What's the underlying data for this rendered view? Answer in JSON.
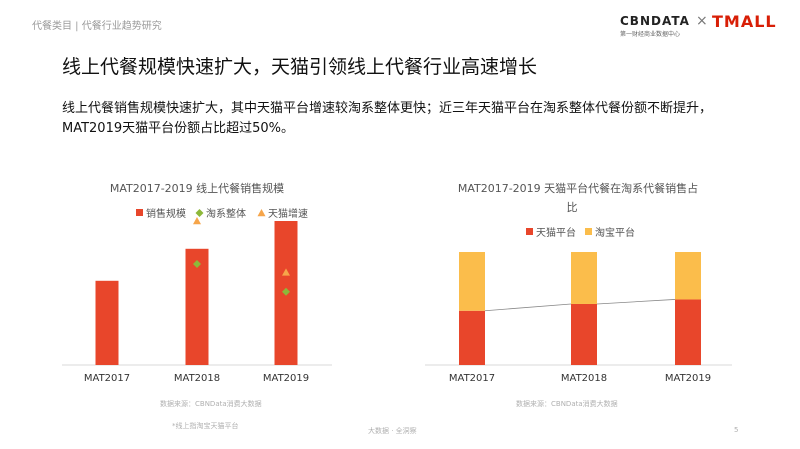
{
  "header": {
    "breadcrumb": "代餐类目 | 代餐行业趋势研究",
    "logo_cbn": "CBNDATA",
    "logo_cbn_sub": "第一财经商业数据中心",
    "logo_x": "×",
    "logo_tmall": "TMALL"
  },
  "page_title": "线上代餐规模快速扩大，天猫引领线上代餐行业高速增长",
  "description": "线上代餐销售规模快速扩大，其中天猫平台增速较淘系整体更快；近三年天猫平台在淘系整体代餐份额不断提升，MAT2019天猫平台份额占比超过50%。",
  "footer": {
    "source_left": "数据来源：CBNData消费大数据",
    "note_left": "*线上指淘宝天猫平台",
    "source_right": "数据来源：CBNData消费大数据",
    "center": "大数据 · 全洞察",
    "page_number": "5"
  },
  "colors": {
    "red": "#e8462b",
    "orange": "#fbbd4b",
    "green": "#8db83a",
    "triangle": "#f6a54a",
    "axis": "#d9d9d9"
  },
  "chart_data": [
    {
      "type": "bar",
      "title": "MAT2017-2019 线上代餐销售规模",
      "categories": [
        "MAT2017",
        "MAT2018",
        "MAT2019"
      ],
      "legend": [
        "销售规模",
        "淘系整体",
        "天猫增速"
      ],
      "legend_position": "top",
      "series": [
        {
          "name": "销售规模",
          "mark": "bar",
          "values": [
            1.0,
            1.38,
            1.71
          ]
        },
        {
          "name": "淘系整体",
          "mark": "diamond",
          "values": [
            null,
            1.2,
            0.87
          ]
        },
        {
          "name": "天猫增速",
          "mark": "triangle",
          "values": [
            null,
            1.71,
            1.1
          ]
        }
      ],
      "ylim": [
        0,
        1.9
      ],
      "grid": false,
      "axis_labels": "none"
    },
    {
      "type": "bar",
      "stacked": true,
      "title": "MAT2017-2019 天猫平台代餐在淘系代餐销售占比",
      "categories": [
        "MAT2017",
        "MAT2018",
        "MAT2019"
      ],
      "legend": [
        "天猫平台",
        "淘宝平台"
      ],
      "legend_position": "top",
      "series": [
        {
          "name": "天猫平台",
          "values": [
            0.48,
            0.54,
            0.58
          ]
        },
        {
          "name": "淘宝平台",
          "values": [
            0.52,
            0.46,
            0.42
          ]
        }
      ],
      "ylim": [
        0,
        1
      ],
      "connector_line": true,
      "grid": false
    }
  ]
}
